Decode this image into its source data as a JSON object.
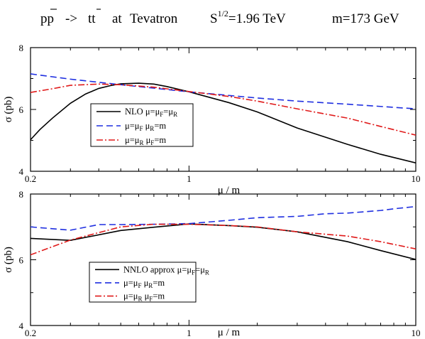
{
  "figure": {
    "title": {
      "process_p1": "p",
      "process_p2": "p",
      "process_arrow": "->",
      "process_t1": "t",
      "process_t2": "t",
      "at": "at",
      "collider": "Tevatron",
      "sqrt_s_lhs": "S",
      "sqrt_s_sup": "1/2",
      "sqrt_s_rhs": "=1.96 TeV",
      "mass": "m=173 GeV"
    }
  },
  "chart_data": [
    {
      "type": "line",
      "x_scale": "log",
      "xlim": [
        0.2,
        10
      ],
      "ylim": [
        4,
        8
      ],
      "xlabel": "μ / m",
      "ylabel": "σ (pb)",
      "xticks": [
        0.2,
        1,
        10
      ],
      "xtick_labels": [
        "0.2",
        "1",
        "10"
      ],
      "yticks": [
        4,
        6,
        8
      ],
      "ytick_labels": [
        "4",
        "6",
        "8"
      ],
      "grid": false,
      "legend_position": "center-left",
      "series": [
        {
          "name": "NLO μ=μF=μR",
          "legend": {
            "main": "NLO μ=μ",
            "sub1": "F",
            "mid": "=μ",
            "sub2": "R"
          },
          "color": "#000000",
          "dash": "solid",
          "x": [
            0.2,
            0.22,
            0.25,
            0.3,
            0.35,
            0.4,
            0.45,
            0.5,
            0.6,
            0.7,
            0.8,
            1,
            1.5,
            2,
            3,
            5,
            7,
            10
          ],
          "y": [
            5.02,
            5.35,
            5.72,
            6.2,
            6.5,
            6.68,
            6.77,
            6.83,
            6.85,
            6.82,
            6.74,
            6.57,
            6.22,
            5.92,
            5.4,
            4.87,
            4.55,
            4.27
          ]
        },
        {
          "name": "μ=μF μR=m",
          "legend": {
            "main": "μ=μ",
            "sub1": "F",
            "mid": "  μ",
            "sub2": "R",
            "tail": "=m"
          },
          "color": "#1f2fe0",
          "dash": "dashed",
          "x": [
            0.2,
            0.3,
            0.5,
            1,
            2,
            3,
            5,
            10
          ],
          "y": [
            7.15,
            6.98,
            6.8,
            6.57,
            6.37,
            6.27,
            6.17,
            6.02
          ]
        },
        {
          "name": "μ=μR μF=m",
          "legend": {
            "main": "μ=μ",
            "sub1": "R",
            "mid": "  μ",
            "sub2": "F",
            "tail": "=m"
          },
          "color": "#e01a1a",
          "dash": "dashdot",
          "x": [
            0.2,
            0.25,
            0.3,
            0.4,
            0.5,
            0.7,
            1,
            1.5,
            2,
            3,
            5,
            7,
            10
          ],
          "y": [
            6.55,
            6.67,
            6.78,
            6.82,
            6.8,
            6.72,
            6.58,
            6.42,
            6.27,
            6.02,
            5.72,
            5.45,
            5.17
          ]
        }
      ]
    },
    {
      "type": "line",
      "x_scale": "log",
      "xlim": [
        0.2,
        10
      ],
      "ylim": [
        4,
        8
      ],
      "xlabel": "μ / m",
      "ylabel": "σ (pb)",
      "xticks": [
        0.2,
        1,
        10
      ],
      "xtick_labels": [
        "0.2",
        "1",
        "10"
      ],
      "yticks": [
        4,
        6,
        8
      ],
      "ytick_labels": [
        "4",
        "6",
        "8"
      ],
      "grid": false,
      "legend_position": "bottom-left",
      "series": [
        {
          "name": "NNLO approx μ=μF=μR",
          "legend": {
            "main": "NNLO approx μ=μ",
            "sub1": "F",
            "mid": "=μ",
            "sub2": "R"
          },
          "color": "#000000",
          "dash": "solid",
          "x": [
            0.2,
            0.3,
            0.5,
            0.7,
            1,
            1.5,
            2,
            3,
            5,
            7,
            10
          ],
          "y": [
            6.65,
            6.59,
            6.89,
            6.99,
            7.09,
            7.04,
            6.99,
            6.85,
            6.55,
            6.28,
            6.01
          ]
        },
        {
          "name": "μ=μF μR=m",
          "legend": {
            "main": "μ=μ",
            "sub1": "F",
            "mid": "  μ",
            "sub2": "R",
            "tail": "=m"
          },
          "color": "#1f2fe0",
          "dash": "dashed",
          "x": [
            0.2,
            0.3,
            0.4,
            0.5,
            0.7,
            1,
            1.5,
            2,
            3,
            4,
            5,
            7,
            8,
            10
          ],
          "y": [
            7.0,
            6.9,
            7.07,
            7.07,
            7.08,
            7.1,
            7.2,
            7.28,
            7.32,
            7.4,
            7.42,
            7.5,
            7.55,
            7.62
          ]
        },
        {
          "name": "μ=μR μF=m",
          "legend": {
            "main": "μ=μ",
            "sub1": "R",
            "mid": "  μ",
            "sub2": "F",
            "tail": "=m"
          },
          "color": "#e01a1a",
          "dash": "dashdot",
          "x": [
            0.2,
            0.3,
            0.5,
            0.7,
            1,
            1.5,
            2,
            3,
            5,
            7,
            10
          ],
          "y": [
            6.15,
            6.6,
            7.0,
            7.08,
            7.08,
            7.04,
            7.0,
            6.85,
            6.72,
            6.55,
            6.33
          ]
        }
      ]
    }
  ]
}
